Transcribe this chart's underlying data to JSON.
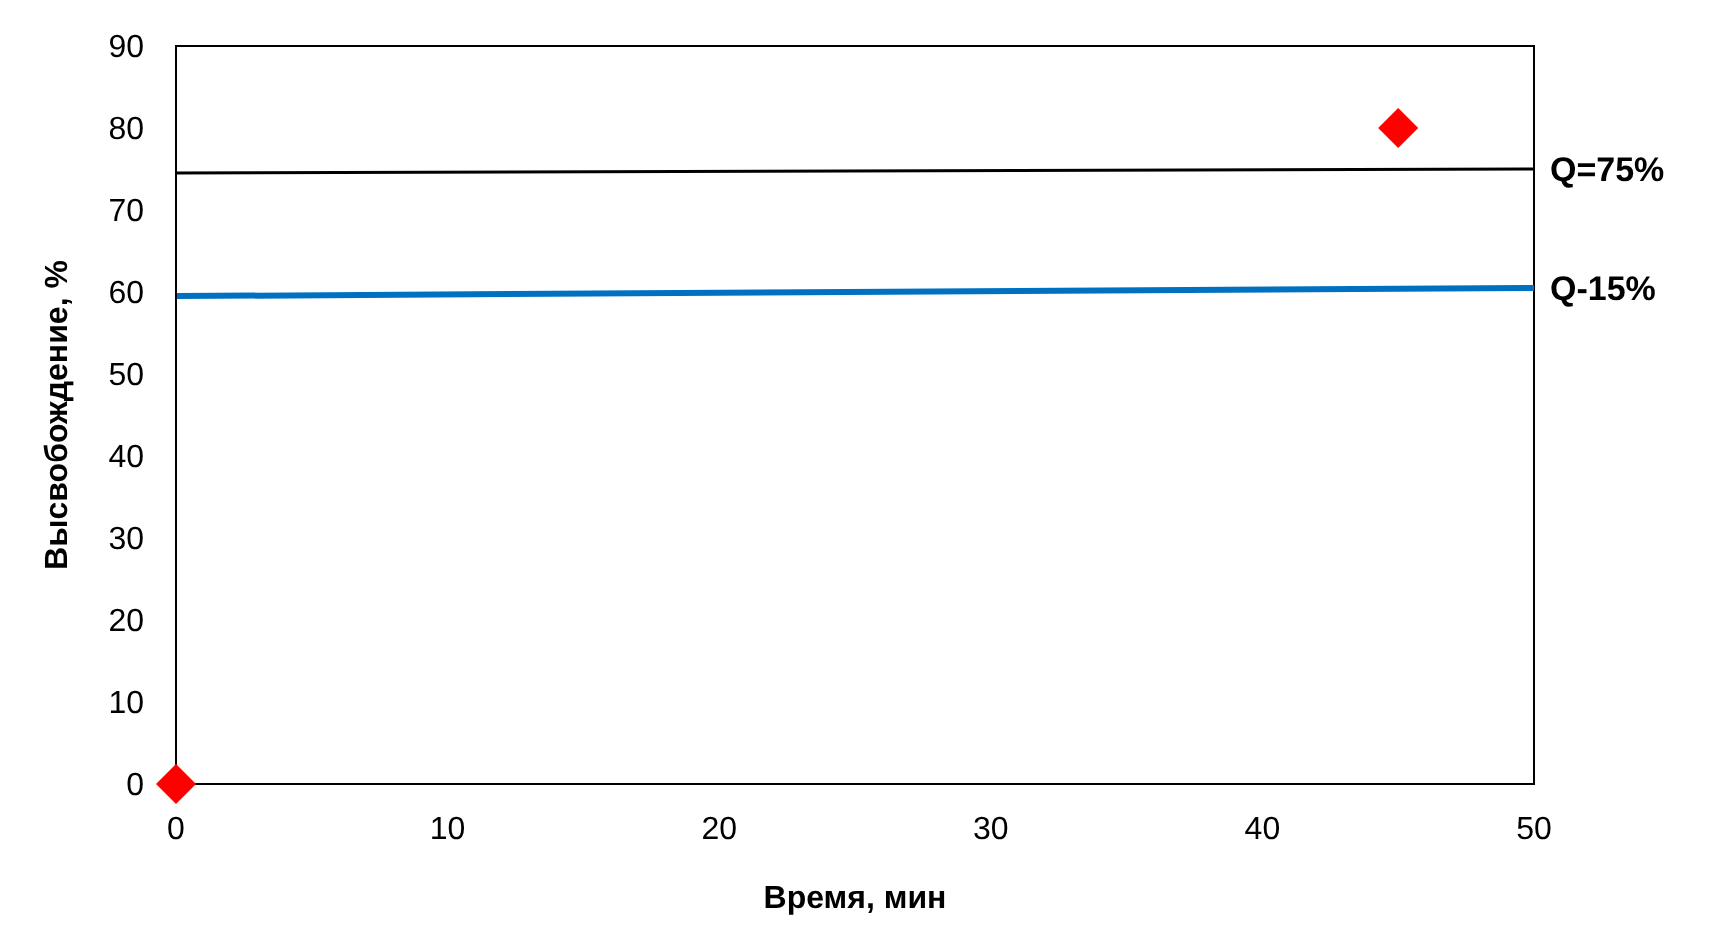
{
  "chart_data": {
    "type": "scatter",
    "xlabel": "Время, мин",
    "ylabel": "Высвобождение, %",
    "xlim": [
      0,
      50
    ],
    "ylim": [
      0,
      90
    ],
    "xticks": [
      0,
      10,
      20,
      30,
      40,
      50
    ],
    "yticks": [
      0,
      10,
      20,
      30,
      40,
      50,
      60,
      70,
      80,
      90
    ],
    "grid": false,
    "legend": false,
    "series": [
      {
        "color": "#ff0000",
        "marker": "diamond",
        "x": [
          0,
          45
        ],
        "values": [
          0,
          80
        ]
      },
      {
        "type": "line",
        "color": "#000000",
        "x": [
          0,
          50
        ],
        "values": [
          74.5,
          75
        ]
      },
      {
        "type": "line",
        "color": "#0070c0",
        "x": [
          0,
          50
        ],
        "values": [
          59.5,
          60.5
        ]
      }
    ],
    "annotations": [
      {
        "text": "Q=75%",
        "x": 50,
        "y": 75
      },
      {
        "text": "Q-15%",
        "x": 50,
        "y": 60.5
      }
    ]
  }
}
